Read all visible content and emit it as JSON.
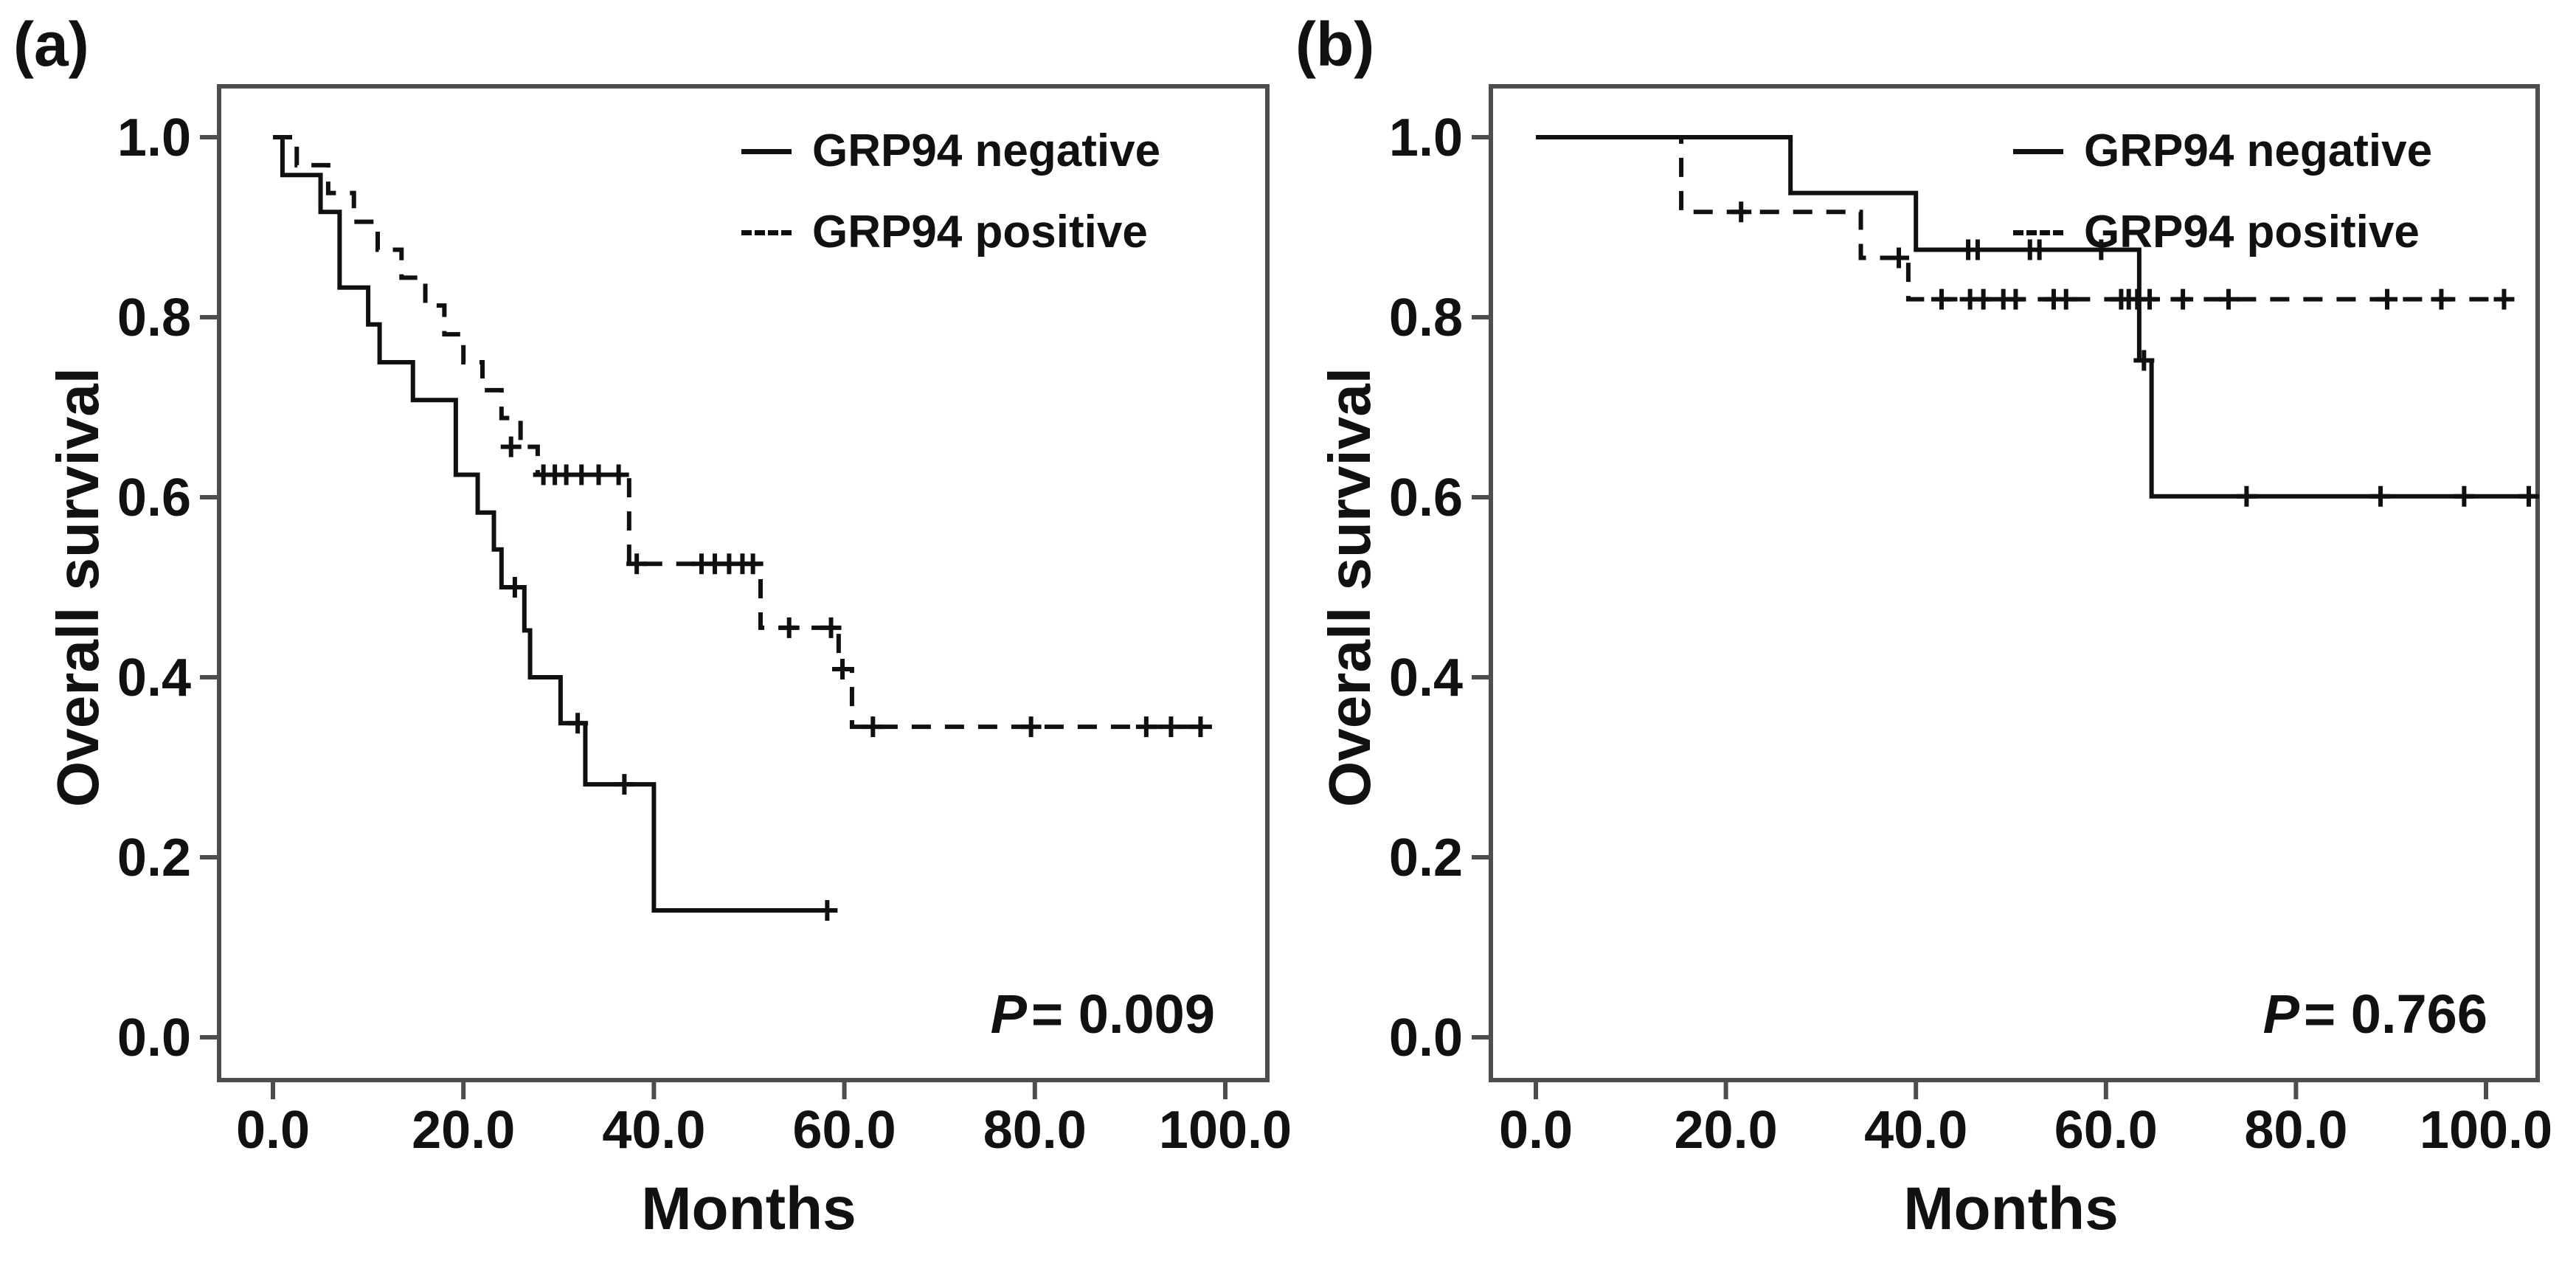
{
  "figure_title": "",
  "colors": {
    "curve": "#101010",
    "frame": "#4d4d4d",
    "text": "#111111",
    "background": "#ffffff"
  },
  "chart_data": [
    {
      "panel_label": "(a)",
      "type": "km_survival_step",
      "title": "",
      "xlabel": "Months",
      "ylabel": "Overall survival",
      "xlim": [
        -5.65,
        104.4
      ],
      "ylim": [
        -0.0475,
        1.0566
      ],
      "x_ticks": [
        {
          "value": 0,
          "label": "0.0"
        },
        {
          "value": 20,
          "label": "20.0"
        },
        {
          "value": 40,
          "label": "40.0"
        },
        {
          "value": 60,
          "label": "60.0"
        },
        {
          "value": 80,
          "label": "80.0"
        },
        {
          "value": 100,
          "label": "100.0"
        }
      ],
      "y_ticks": [
        {
          "value": 1.0,
          "label": "1.0"
        },
        {
          "value": 0.8,
          "label": "0.8"
        },
        {
          "value": 0.6,
          "label": "0.6"
        },
        {
          "value": 0.4,
          "label": "0.4"
        },
        {
          "value": 0.2,
          "label": "0.2"
        },
        {
          "value": 0.0,
          "label": "0.0"
        }
      ],
      "p_value": {
        "symbol": "P",
        "text": "= 0.009"
      },
      "series": [
        {
          "name": "GRP94 negative",
          "line_style": "solid",
          "steps": [
            [
              0,
              1.0
            ],
            [
              1,
              0.958
            ],
            [
              5,
              0.917
            ],
            [
              7,
              0.833
            ],
            [
              10,
              0.792
            ],
            [
              11.2,
              0.75
            ],
            [
              14.7,
              0.708
            ],
            [
              19.2,
              0.625
            ],
            [
              21.5,
              0.583
            ],
            [
              23.2,
              0.542
            ],
            [
              24,
              0.5
            ],
            [
              26.4,
              0.452
            ],
            [
              27,
              0.4
            ],
            [
              30.2,
              0.349
            ],
            [
              32.8,
              0.281
            ],
            [
              40,
              0.141
            ]
          ],
          "end_month": 58.2,
          "censor_marks": [
            [
              25.4,
              0.5
            ],
            [
              32,
              0.349
            ],
            [
              36.9,
              0.281
            ],
            [
              58.2,
              0.141
            ]
          ]
        },
        {
          "name": "GRP94 positive",
          "line_style": "dashed",
          "steps": [
            [
              0,
              1.0
            ],
            [
              2.5,
              0.969
            ],
            [
              5.8,
              0.938
            ],
            [
              8.5,
              0.906
            ],
            [
              11,
              0.875
            ],
            [
              13.5,
              0.844
            ],
            [
              16,
              0.813
            ],
            [
              18,
              0.781
            ],
            [
              20,
              0.75
            ],
            [
              22,
              0.719
            ],
            [
              24,
              0.688
            ],
            [
              26,
              0.656
            ],
            [
              27.8,
              0.625
            ],
            [
              37.4,
              0.526
            ],
            [
              51.2,
              0.455
            ],
            [
              59.4,
              0.409
            ],
            [
              60.8,
              0.345
            ]
          ],
          "end_month": 98.6,
          "censor_marks": [
            [
              25,
              0.656
            ],
            [
              28.4,
              0.625
            ],
            [
              29.6,
              0.625
            ],
            [
              30.8,
              0.625
            ],
            [
              32.4,
              0.625
            ],
            [
              34.2,
              0.625
            ],
            [
              36.3,
              0.625
            ],
            [
              38.2,
              0.526
            ],
            [
              45,
              0.526
            ],
            [
              46.4,
              0.526
            ],
            [
              47.9,
              0.526
            ],
            [
              49.3,
              0.526
            ],
            [
              50.4,
              0.526
            ],
            [
              54.2,
              0.455
            ],
            [
              58.6,
              0.455
            ],
            [
              59.8,
              0.409
            ],
            [
              63,
              0.345
            ],
            [
              79.6,
              0.345
            ],
            [
              91.7,
              0.345
            ],
            [
              94.3,
              0.345
            ],
            [
              97.4,
              0.345
            ]
          ]
        }
      ]
    },
    {
      "panel_label": "(b)",
      "type": "km_survival_step",
      "title": "",
      "xlabel": "Months",
      "ylabel": "Overall survival",
      "xlim": [
        -4.7,
        105.4
      ],
      "ylim": [
        -0.0475,
        1.0566
      ],
      "x_ticks": [
        {
          "value": 0,
          "label": "0.0"
        },
        {
          "value": 20,
          "label": "20.0"
        },
        {
          "value": 40,
          "label": "40.0"
        },
        {
          "value": 60,
          "label": "60.0"
        },
        {
          "value": 80,
          "label": "80.0"
        },
        {
          "value": 100,
          "label": "100.0"
        }
      ],
      "y_ticks": [
        {
          "value": 1.0,
          "label": "1.0"
        },
        {
          "value": 0.8,
          "label": "0.8"
        },
        {
          "value": 0.6,
          "label": "0.6"
        },
        {
          "value": 0.4,
          "label": "0.4"
        },
        {
          "value": 0.2,
          "label": "0.2"
        },
        {
          "value": 0.0,
          "label": "0.0"
        }
      ],
      "p_value": {
        "symbol": "P",
        "text": "= 0.766"
      },
      "series": [
        {
          "name": "GRP94 negative",
          "line_style": "solid",
          "steps": [
            [
              0,
              1.0
            ],
            [
              26.8,
              0.938
            ],
            [
              40,
              0.875
            ],
            [
              63.5,
              0.752
            ],
            [
              64.8,
              0.601
            ]
          ],
          "end_month": 105.4,
          "censor_marks": [
            [
              45.5,
              0.875
            ],
            [
              46.5,
              0.875
            ],
            [
              52,
              0.875
            ],
            [
              53,
              0.875
            ],
            [
              59.5,
              0.875
            ],
            [
              64,
              0.752
            ],
            [
              74.8,
              0.601
            ],
            [
              88.9,
              0.601
            ],
            [
              97.7,
              0.601
            ],
            [
              104.5,
              0.601
            ]
          ]
        },
        {
          "name": "GRP94 positive",
          "line_style": "dashed",
          "steps": [
            [
              0,
              1.0
            ],
            [
              15.3,
              0.917
            ],
            [
              34.2,
              0.866
            ],
            [
              39.2,
              0.82
            ]
          ],
          "end_month": 102,
          "censor_marks": [
            [
              21.6,
              0.917
            ],
            [
              38.2,
              0.866
            ],
            [
              42.7,
              0.82
            ],
            [
              45.7,
              0.82
            ],
            [
              47.1,
              0.82
            ],
            [
              49.2,
              0.82
            ],
            [
              50.5,
              0.82
            ],
            [
              54.5,
              0.82
            ],
            [
              55.8,
              0.82
            ],
            [
              61.6,
              0.82
            ],
            [
              62.4,
              0.82
            ],
            [
              63.3,
              0.82
            ],
            [
              64.6,
              0.82
            ],
            [
              68.1,
              0.82
            ],
            [
              72.9,
              0.82
            ],
            [
              89.6,
              0.82
            ],
            [
              95.3,
              0.82
            ],
            [
              101.9,
              0.82
            ]
          ]
        }
      ]
    }
  ]
}
